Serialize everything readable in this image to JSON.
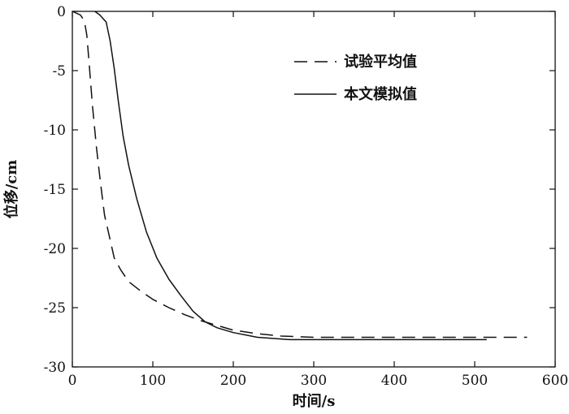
{
  "chart_data": {
    "type": "line",
    "xlabel": "时间/s",
    "ylabel": "位移/cm",
    "xlim": [
      0,
      600
    ],
    "ylim": [
      -30,
      0
    ],
    "x_ticks": [
      "0",
      "100",
      "200",
      "300",
      "400",
      "500",
      "600"
    ],
    "y_ticks": [
      "0",
      "-5",
      "-10",
      "-15",
      "-20",
      "-25",
      "-30"
    ],
    "grid": false,
    "legend_position": "top-right",
    "series": [
      {
        "name": "试验平均值",
        "style": "dashed",
        "color": "#111111",
        "points": [
          [
            0,
            0
          ],
          [
            10,
            -0.3
          ],
          [
            15,
            -0.8
          ],
          [
            18,
            -2.0
          ],
          [
            21,
            -4.5
          ],
          [
            25,
            -8.0
          ],
          [
            30,
            -11.5
          ],
          [
            35,
            -14.5
          ],
          [
            40,
            -17.2
          ],
          [
            45,
            -18.7
          ],
          [
            52,
            -20.8
          ],
          [
            60,
            -21.8
          ],
          [
            70,
            -22.8
          ],
          [
            85,
            -23.6
          ],
          [
            100,
            -24.3
          ],
          [
            120,
            -25.0
          ],
          [
            140,
            -25.6
          ],
          [
            160,
            -26.1
          ],
          [
            180,
            -26.5
          ],
          [
            200,
            -26.9
          ],
          [
            230,
            -27.2
          ],
          [
            260,
            -27.4
          ],
          [
            300,
            -27.5
          ],
          [
            400,
            -27.5
          ],
          [
            500,
            -27.5
          ],
          [
            565,
            -27.5
          ]
        ]
      },
      {
        "name": "本文模拟值",
        "style": "solid",
        "color": "#111111",
        "points": [
          [
            28,
            0
          ],
          [
            34,
            -0.3
          ],
          [
            42,
            -0.9
          ],
          [
            47,
            -2.5
          ],
          [
            52,
            -4.8
          ],
          [
            57,
            -7.5
          ],
          [
            63,
            -10.5
          ],
          [
            70,
            -13.0
          ],
          [
            80,
            -15.8
          ],
          [
            92,
            -18.6
          ],
          [
            105,
            -20.8
          ],
          [
            120,
            -22.6
          ],
          [
            135,
            -24.0
          ],
          [
            150,
            -25.3
          ],
          [
            165,
            -26.2
          ],
          [
            180,
            -26.7
          ],
          [
            200,
            -27.1
          ],
          [
            230,
            -27.5
          ],
          [
            270,
            -27.7
          ],
          [
            350,
            -27.7
          ],
          [
            450,
            -27.7
          ],
          [
            515,
            -27.7
          ]
        ]
      }
    ]
  }
}
